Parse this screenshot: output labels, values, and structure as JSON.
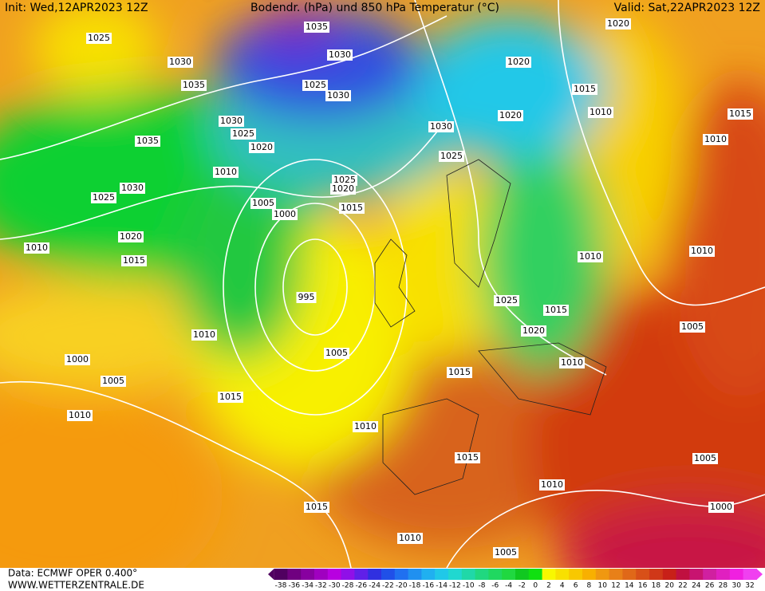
{
  "header": {
    "init": "Init: Wed,12APR2023 12Z",
    "title": "Bodendr. (hPa) und 850 hPa Temperatur (°C)",
    "valid": "Valid: Sat,22APR2023 12Z"
  },
  "isobar_labels": [
    "1025",
    "1030",
    "1035",
    "1035",
    "1030",
    "1025",
    "1020",
    "1015",
    "1010",
    "1030",
    "1025",
    "1020",
    "1010",
    "1005",
    "1000",
    "1025",
    "1020",
    "1015",
    "995",
    "1010",
    "1005",
    "1000",
    "1005",
    "1010",
    "1015",
    "1010",
    "1015",
    "1015",
    "1010",
    "1015",
    "1010",
    "1005",
    "1000",
    "1005",
    "1005",
    "1010",
    "1010",
    "1015",
    "1020",
    "1025",
    "1010",
    "1035",
    "1030",
    "1025",
    "1030",
    "1030",
    "1025",
    "1020",
    "1020",
    "1020",
    "1015",
    "1010",
    "1015",
    "1010"
  ],
  "footer": {
    "source": "Data: ECMWF OPER 0.400°",
    "site": "WWW.WETTERZENTRALE.DE"
  },
  "colorbar": {
    "ticks": [
      -38,
      -36,
      -34,
      -32,
      -30,
      -28,
      -26,
      -24,
      -22,
      -20,
      -18,
      -16,
      -14,
      -12,
      -10,
      -8,
      -6,
      -4,
      -2,
      0,
      2,
      4,
      6,
      8,
      10,
      12,
      14,
      16,
      18,
      20,
      22,
      24,
      26,
      28,
      30,
      32
    ]
  }
}
